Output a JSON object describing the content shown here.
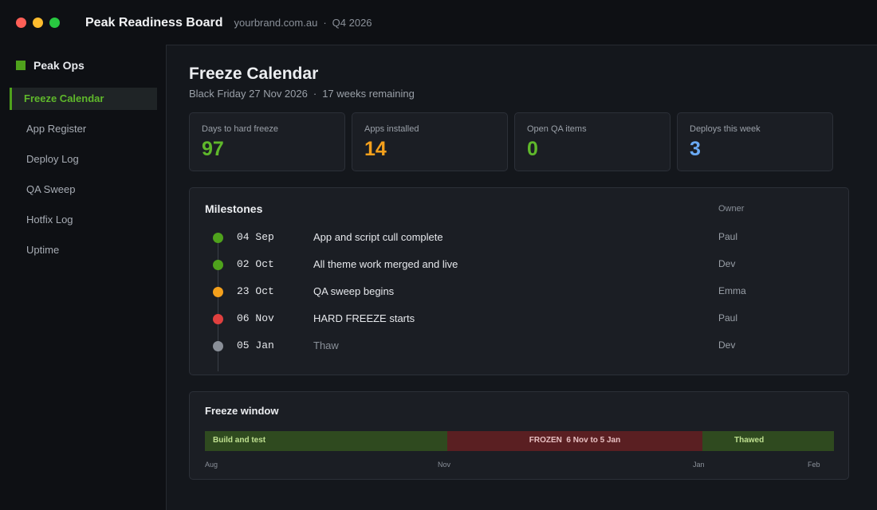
{
  "window": {
    "title": "Peak Readiness Board",
    "domain": "yourbrand.com.au",
    "period": "Q4 2026",
    "separator": "·",
    "controls": [
      {
        "name": "close",
        "color": "#ff5f57"
      },
      {
        "name": "minimize",
        "color": "#febc2e"
      },
      {
        "name": "maximize",
        "color": "#28c840"
      }
    ]
  },
  "sidebar": {
    "brand": "Peak Ops",
    "brand_color": "#4fa21c",
    "items": [
      {
        "label": "Freeze Calendar",
        "active": true
      },
      {
        "label": "App Register",
        "active": false
      },
      {
        "label": "Deploy Log",
        "active": false
      },
      {
        "label": "QA Sweep",
        "active": false
      },
      {
        "label": "Hotfix Log",
        "active": false
      },
      {
        "label": "Uptime",
        "active": false
      }
    ]
  },
  "main": {
    "title": "Freeze Calendar",
    "subtitle_date": "Black Friday 27 Nov 2026",
    "subtitle_separator": "·",
    "subtitle_remaining": "17 weeks remaining",
    "stats": [
      {
        "label": "Days to hard freeze",
        "value": "97",
        "color": "#5fb82b"
      },
      {
        "label": "Apps installed",
        "value": "14",
        "color": "#f4a01c"
      },
      {
        "label": "Open QA items",
        "value": "0",
        "color": "#5fb82b"
      },
      {
        "label": "Deploys this week",
        "value": "3",
        "color": "#6aaaf5"
      }
    ],
    "milestones": {
      "title": "Milestones",
      "owner_header": "Owner",
      "rows": [
        {
          "date": "04 Sep",
          "desc": "App and script cull complete",
          "owner": "Paul",
          "status": "done",
          "color": "#4fa21c"
        },
        {
          "date": "02 Oct",
          "desc": "All theme work merged and live",
          "owner": "Dev",
          "status": "done",
          "color": "#4fa21c"
        },
        {
          "date": "23 Oct",
          "desc": "QA sweep begins",
          "owner": "Emma",
          "status": "upcoming",
          "color": "#f4a01c"
        },
        {
          "date": "06 Nov",
          "desc": "HARD FREEZE starts",
          "owner": "Paul",
          "status": "critical",
          "color": "#e0403f"
        },
        {
          "date": "05 Jan",
          "desc": "Thaw",
          "owner": "Dev",
          "status": "future",
          "color": "#8a8f98"
        }
      ]
    },
    "freeze_window": {
      "title": "Freeze window",
      "segments": [
        {
          "label": "Build and test",
          "kind": "build"
        },
        {
          "label": "FROZEN  6 Nov to 5 Jan",
          "kind": "frozen"
        },
        {
          "label": "Thawed",
          "kind": "thawed"
        }
      ],
      "ticks": [
        "Aug",
        "Nov",
        "Jan",
        "Feb"
      ]
    }
  }
}
